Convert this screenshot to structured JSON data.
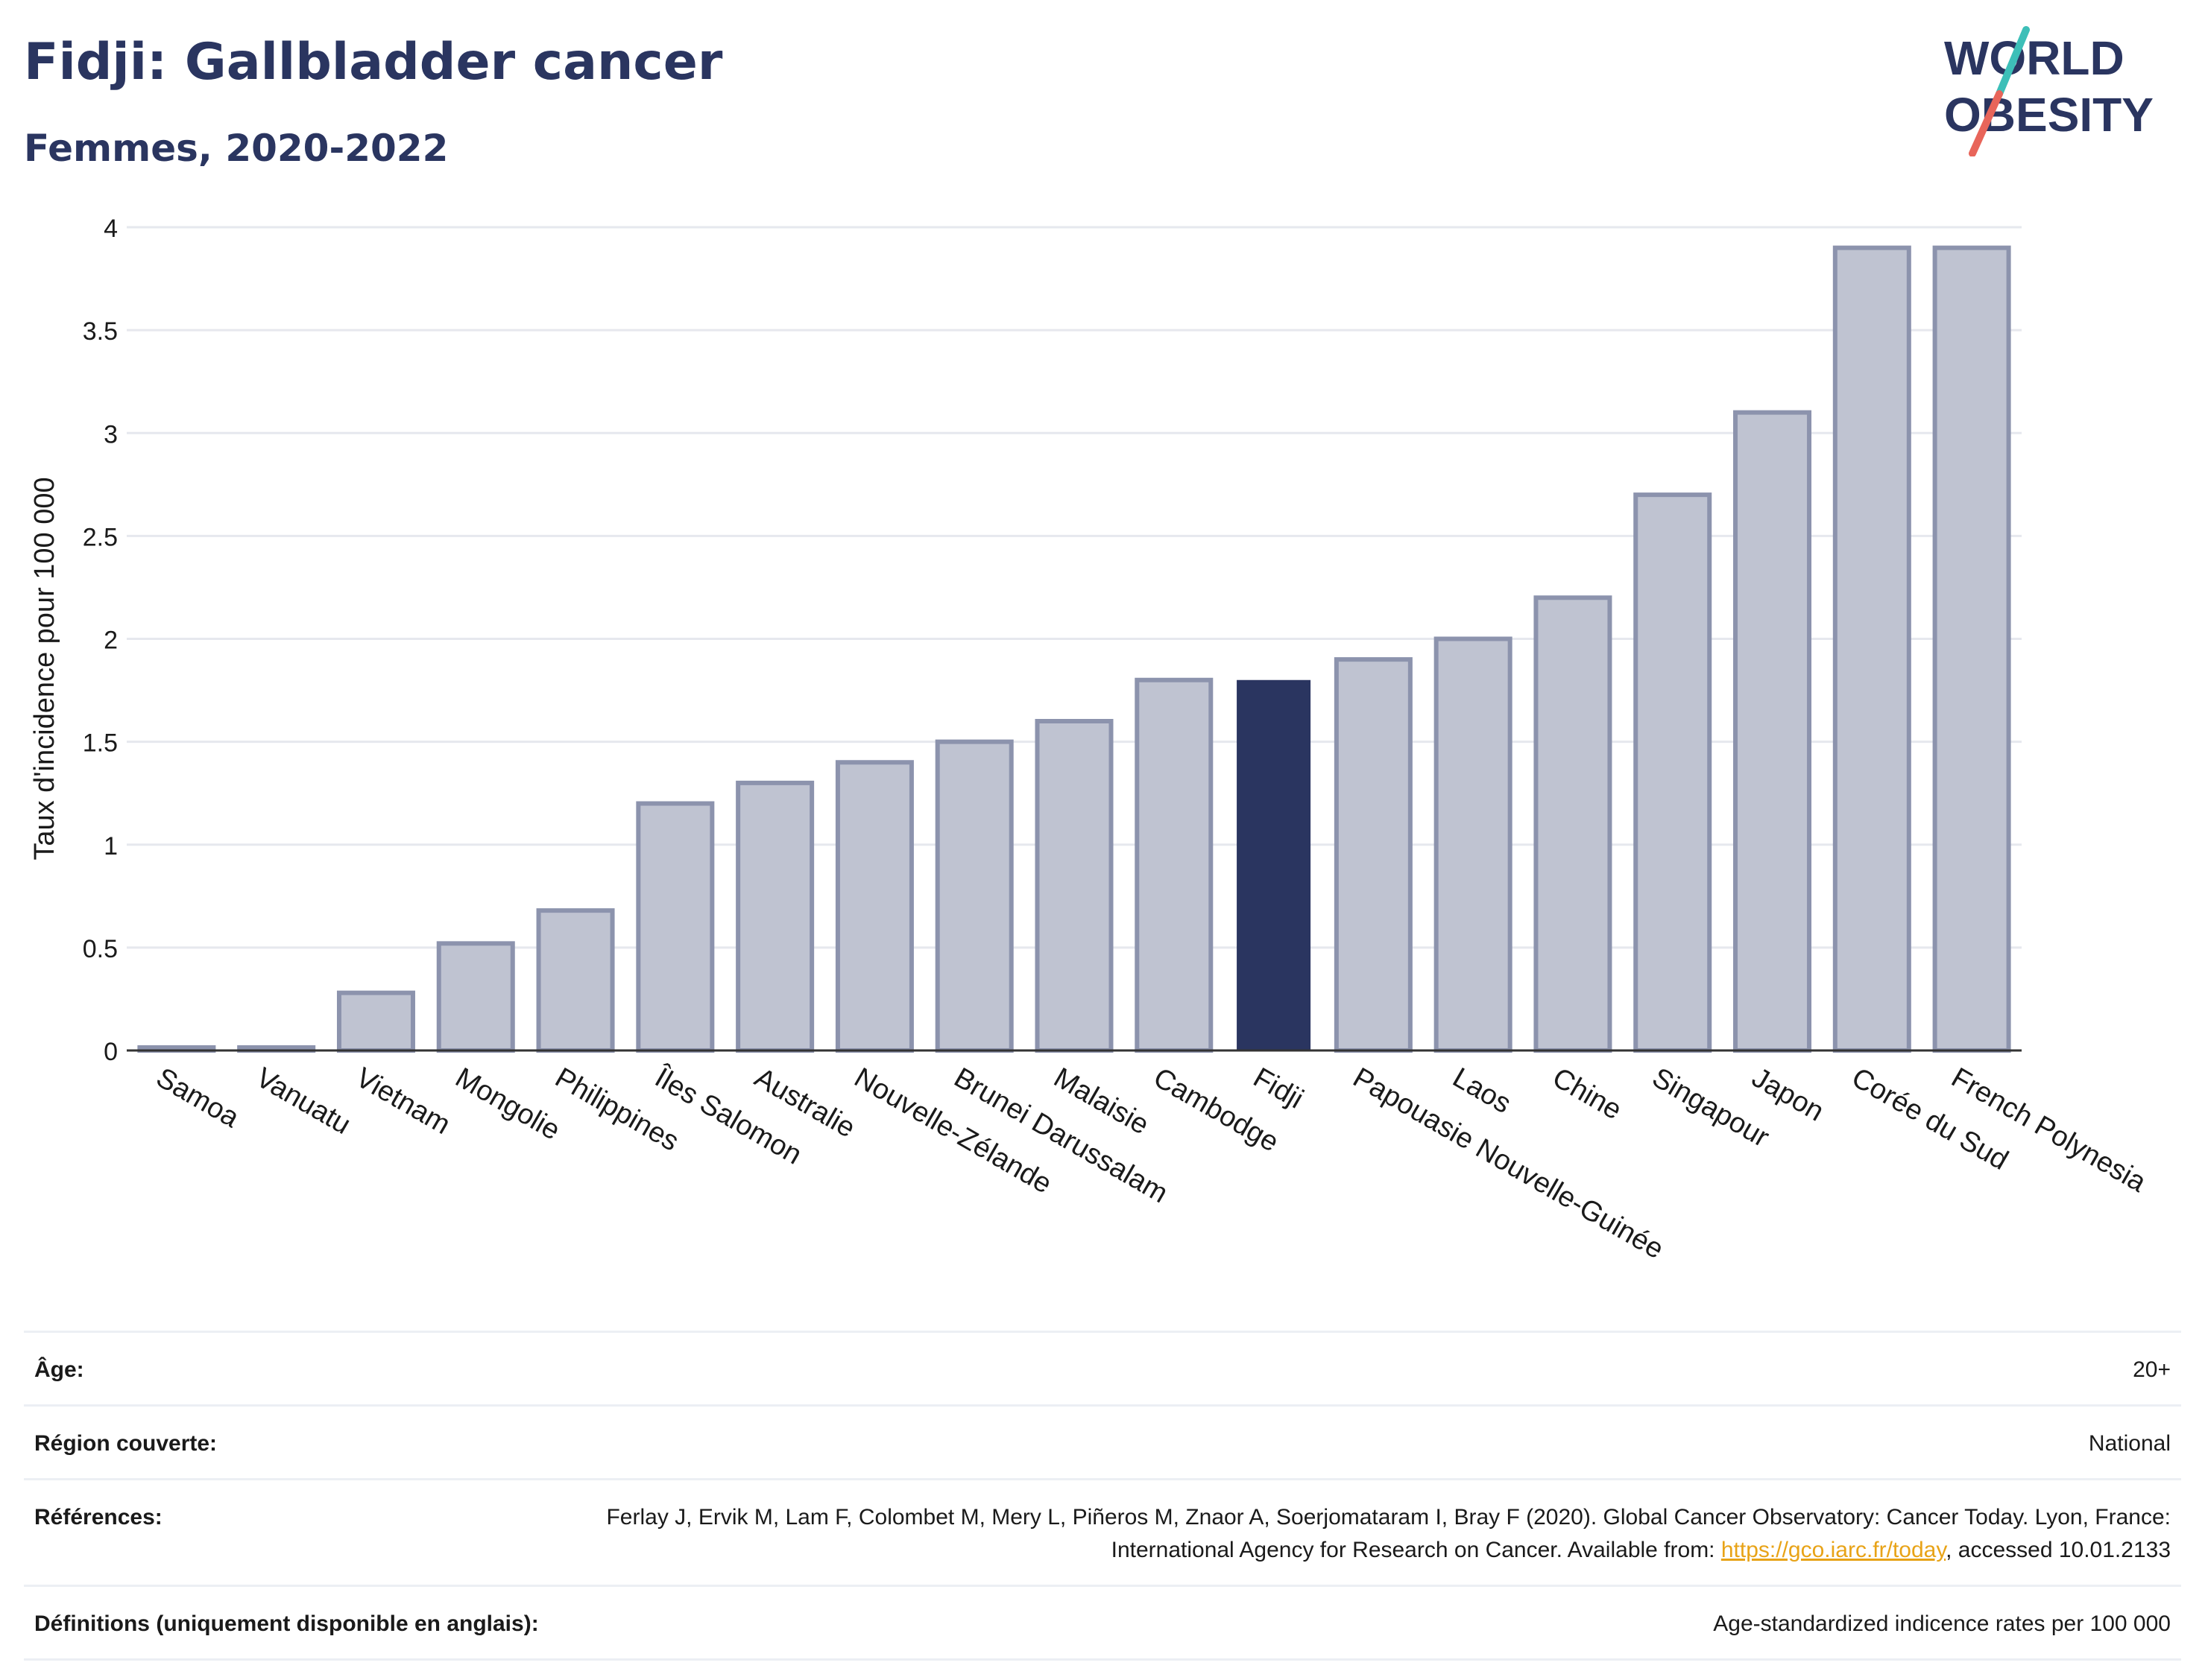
{
  "header": {
    "title": "Fidji: Gallbladder cancer",
    "subtitle": "Femmes, 2020-2022",
    "logo_line1": "WORLD",
    "logo_line2": "OBESITY"
  },
  "colors": {
    "highlight": "#2a3560",
    "bar_fill": "#bfc3d1",
    "bar_stroke": "#8c93ad",
    "grid": "#e6e8ee",
    "title": "#2a3560",
    "link": "#e8a317",
    "logo_teal": "#3dbfb8",
    "logo_red": "#e8655a"
  },
  "chart_data": {
    "type": "bar",
    "title": "Fidji: Gallbladder cancer",
    "subtitle": "Femmes, 2020-2022",
    "ylabel": "Taux d'incidence pour 100 000",
    "xlabel": "",
    "ylim": [
      0,
      4
    ],
    "yticks": [
      0,
      0.5,
      1,
      1.5,
      2,
      2.5,
      3,
      3.5,
      4
    ],
    "ytick_labels": [
      "0",
      "0.5",
      "1",
      "1.5",
      "2",
      "2.5",
      "3",
      "3.5",
      "4"
    ],
    "grid": true,
    "highlight_category": "Fidji",
    "categories": [
      "Samoa",
      "Vanuatu",
      "Vietnam",
      "Mongolie",
      "Philippines",
      "Îles Salomon",
      "Australie",
      "Nouvelle-Zélande",
      "Brunei Darussalam",
      "Malaisie",
      "Cambodge",
      "Fidji",
      "Papouasie Nouvelle-Guinée",
      "Laos",
      "Chine",
      "Singapour",
      "Japon",
      "Corée du Sud",
      "French Polynesia"
    ],
    "values": [
      0,
      0,
      0.28,
      0.52,
      0.68,
      1.2,
      1.3,
      1.4,
      1.5,
      1.6,
      1.8,
      1.8,
      1.9,
      2.0,
      2.2,
      2.7,
      3.1,
      3.9,
      3.9
    ]
  },
  "meta": {
    "rows": [
      {
        "label": "Âge:",
        "value": "20+"
      },
      {
        "label": "Région couverte:",
        "value": "National"
      },
      {
        "label": "Références:",
        "value_before": "Ferlay J, Ervik M, Lam F, Colombet M, Mery L, Piñeros M, Znaor A, Soerjomataram I, Bray F (2020). Global Cancer Observatory: Cancer Today. Lyon, France: International Agency for Research on Cancer. Available from: ",
        "link": "https://gco.iarc.fr/today",
        "value_after": ", accessed 10.01.2133"
      },
      {
        "label": "Définitions (uniquement disponible en anglais):",
        "value": "Age-standardized indicence rates per 100 000"
      }
    ]
  }
}
